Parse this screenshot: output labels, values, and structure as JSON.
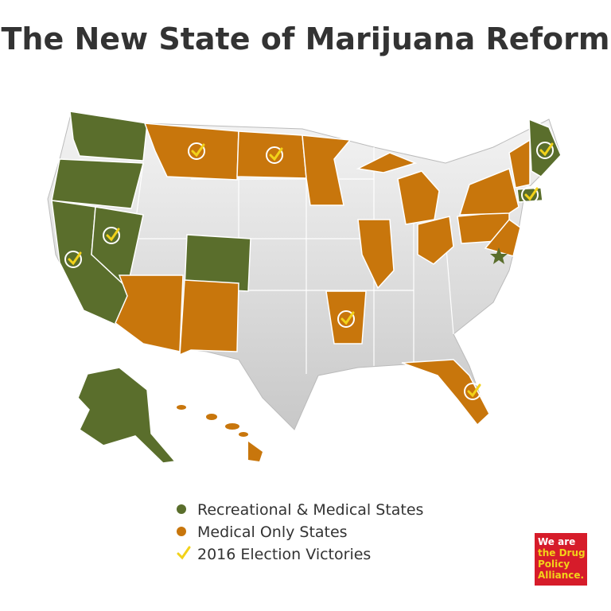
{
  "title": "The New State of Marijuana Reform",
  "legend": [
    {
      "label": "Recreational & Medical States",
      "color": "#5a6e2c",
      "marker": "dot"
    },
    {
      "label": "Medical Only States",
      "color": "#c8760c",
      "marker": "dot"
    },
    {
      "label": "2016 Election Victories",
      "color": "#f2d21a",
      "marker": "check"
    }
  ],
  "logo": {
    "lines": [
      "We are",
      "the Drug",
      "Policy",
      "Alliance."
    ]
  }
}
